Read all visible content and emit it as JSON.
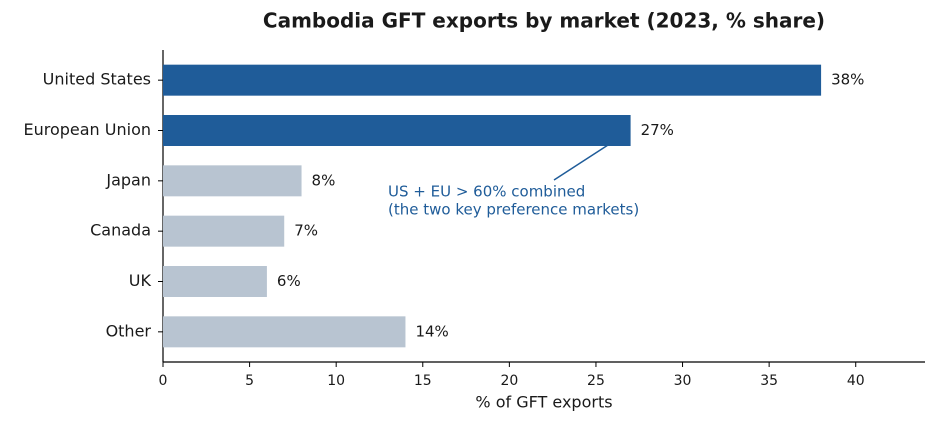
{
  "chart_data": {
    "type": "bar",
    "orientation": "horizontal",
    "title": "Cambodia GFT exports by market (2023, % share)",
    "xlabel": "% of GFT exports",
    "categories": [
      "United States",
      "European Union",
      "Japan",
      "Canada",
      "UK",
      "Other"
    ],
    "values": [
      38,
      27,
      8,
      7,
      6,
      14
    ],
    "value_labels": [
      "38%",
      "27%",
      "8%",
      "7%",
      "6%",
      "14%"
    ],
    "colors": [
      "#1f5c99",
      "#1f5c99",
      "#b8c4d1",
      "#b8c4d1",
      "#b8c4d1",
      "#b8c4d1"
    ],
    "xlim": [
      0,
      44
    ],
    "xticks": [
      0,
      5,
      10,
      15,
      20,
      25,
      30,
      35,
      40
    ],
    "annotation": {
      "lines": [
        "US + EU > 60% combined",
        "(the two key preference markets)"
      ],
      "color": "#1f5c99"
    }
  }
}
